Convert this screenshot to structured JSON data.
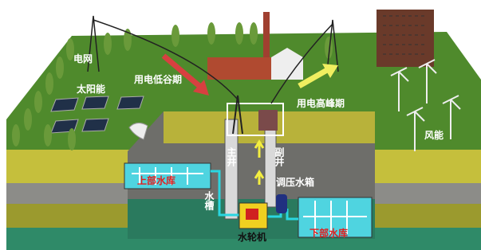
{
  "labels": {
    "grid": "电网",
    "solar": "太阳能",
    "off_peak": "用电低谷期",
    "peak": "用电高峰期",
    "wind": "风能",
    "main_shaft": "主井",
    "aux_shaft": "副井",
    "surge_tank": "调压水箱",
    "water_channel": "水槽",
    "turbine": "水轮机",
    "upper_reservoir": "上部水库",
    "lower_reservoir": "下部水库"
  }
}
